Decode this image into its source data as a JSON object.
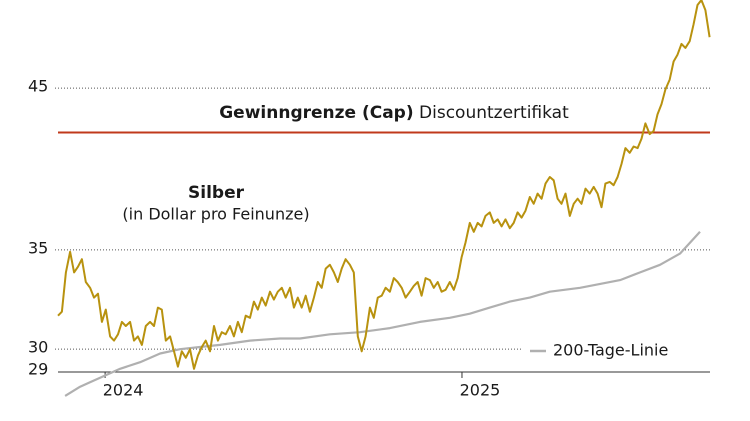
{
  "chart_data": {
    "type": "line",
    "subtitle": "(in Dollar pro Feinunze)",
    "log_scale": true,
    "grid": true,
    "legend": "bottom-right",
    "ylim": [
      29,
      51.6
    ],
    "yticks": [
      29,
      30,
      35,
      45
    ],
    "xlim": [
      2023.868,
      2025.695
    ],
    "xticks": [
      2024,
      2025
    ],
    "cap": {
      "value": 42,
      "label": "Gewinngrenze (Cap)",
      "note": "Discountzertifikat",
      "color": "#c0391b"
    },
    "series": [
      {
        "name": "Silber",
        "color": "#b8920f",
        "x": [
          2023.868,
          2023.879,
          2023.89,
          2023.902,
          2023.913,
          2023.924,
          2023.935,
          2023.946,
          2023.958,
          2023.969,
          2023.98,
          2023.991,
          2024.002,
          2024.014,
          2024.025,
          2024.036,
          2024.047,
          2024.058,
          2024.07,
          2024.081,
          2024.092,
          2024.103,
          2024.114,
          2024.126,
          2024.137,
          2024.148,
          2024.159,
          2024.17,
          2024.182,
          2024.193,
          2024.204,
          2024.215,
          2024.226,
          2024.238,
          2024.249,
          2024.26,
          2024.271,
          2024.282,
          2024.294,
          2024.305,
          2024.316,
          2024.327,
          2024.338,
          2024.35,
          2024.361,
          2024.372,
          2024.383,
          2024.394,
          2024.406,
          2024.417,
          2024.428,
          2024.439,
          2024.45,
          2024.462,
          2024.473,
          2024.484,
          2024.495,
          2024.506,
          2024.518,
          2024.529,
          2024.54,
          2024.551,
          2024.562,
          2024.574,
          2024.585,
          2024.596,
          2024.607,
          2024.618,
          2024.63,
          2024.641,
          2024.652,
          2024.663,
          2024.674,
          2024.686,
          2024.697,
          2024.708,
          2024.719,
          2024.73,
          2024.742,
          2024.753,
          2024.764,
          2024.775,
          2024.786,
          2024.798,
          2024.809,
          2024.82,
          2024.831,
          2024.842,
          2024.854,
          2024.865,
          2024.876,
          2024.887,
          2024.898,
          2024.91,
          2024.921,
          2024.932,
          2024.943,
          2024.954,
          2024.966,
          2024.977,
          2024.988,
          2024.999,
          2025.01,
          2025.022,
          2025.033,
          2025.044,
          2025.055,
          2025.066,
          2025.078,
          2025.089,
          2025.1,
          2025.111,
          2025.122,
          2025.134,
          2025.145,
          2025.156,
          2025.167,
          2025.178,
          2025.19,
          2025.201,
          2025.212,
          2025.223,
          2025.234,
          2025.246,
          2025.257,
          2025.268,
          2025.279,
          2025.29,
          2025.302,
          2025.313,
          2025.324,
          2025.335,
          2025.346,
          2025.358,
          2025.369,
          2025.38,
          2025.391,
          2025.402,
          2025.414,
          2025.425,
          2025.436,
          2025.447,
          2025.458,
          2025.47,
          2025.481,
          2025.492,
          2025.503,
          2025.514,
          2025.526,
          2025.537,
          2025.548,
          2025.559,
          2025.57,
          2025.582,
          2025.593,
          2025.604,
          2025.615,
          2025.626,
          2025.638,
          2025.649,
          2025.66,
          2025.671,
          2025.682,
          2025.694
        ],
        "values": [
          31.6,
          31.8,
          33.8,
          34.9,
          33.8,
          34.1,
          34.5,
          33.3,
          33.0,
          32.5,
          32.7,
          31.3,
          31.9,
          30.6,
          30.4,
          30.7,
          31.3,
          31.1,
          31.3,
          30.4,
          30.6,
          30.2,
          31.1,
          31.3,
          31.1,
          32.0,
          31.9,
          30.4,
          30.6,
          29.9,
          29.2,
          29.9,
          29.6,
          30.0,
          29.1,
          29.7,
          30.1,
          30.4,
          29.9,
          31.1,
          30.4,
          30.8,
          30.7,
          31.1,
          30.6,
          31.3,
          30.8,
          31.6,
          31.5,
          32.3,
          31.9,
          32.5,
          32.1,
          32.8,
          32.4,
          32.8,
          33.0,
          32.5,
          33.0,
          32.0,
          32.5,
          32.0,
          32.6,
          31.8,
          32.5,
          33.3,
          33.0,
          34.0,
          34.2,
          33.8,
          33.3,
          34.0,
          34.5,
          34.2,
          33.8,
          30.6,
          29.9,
          30.6,
          32.0,
          31.5,
          32.5,
          32.6,
          33.0,
          32.8,
          33.5,
          33.3,
          33.0,
          32.5,
          32.8,
          33.1,
          33.3,
          32.6,
          33.5,
          33.4,
          33.0,
          33.3,
          32.8,
          32.9,
          33.3,
          32.9,
          33.5,
          34.6,
          35.4,
          36.5,
          36.0,
          36.5,
          36.3,
          36.9,
          37.1,
          36.5,
          36.7,
          36.3,
          36.7,
          36.2,
          36.5,
          37.1,
          36.8,
          37.2,
          38.0,
          37.6,
          38.2,
          37.9,
          38.8,
          39.2,
          39.0,
          37.9,
          37.6,
          38.2,
          36.9,
          37.6,
          37.9,
          37.6,
          38.5,
          38.2,
          38.6,
          38.2,
          37.4,
          38.8,
          38.9,
          38.7,
          39.2,
          40.0,
          41.0,
          40.7,
          41.1,
          41.0,
          41.6,
          42.6,
          41.9,
          42.1,
          43.2,
          43.9,
          44.9,
          45.6,
          46.9,
          47.4,
          48.2,
          47.9,
          48.4,
          49.7,
          51.2,
          51.6,
          50.8,
          48.7
        ]
      },
      {
        "name": "200-Tage-Linie",
        "color": "#b0b0b0",
        "x": [
          2023.888,
          2023.93,
          2023.986,
          2024.042,
          2024.098,
          2024.154,
          2024.21,
          2024.266,
          2024.322,
          2024.406,
          2024.49,
          2024.546,
          2024.63,
          2024.714,
          2024.798,
          2024.882,
          2024.966,
          2025.022,
          2025.078,
          2025.134,
          2025.19,
          2025.246,
          2025.331,
          2025.387,
          2025.443,
          2025.499,
          2025.555,
          2025.611,
          2025.667
        ],
        "values": [
          27.9,
          28.3,
          28.7,
          29.1,
          29.4,
          29.8,
          30.0,
          30.1,
          30.2,
          30.4,
          30.5,
          30.5,
          30.7,
          30.8,
          31.0,
          31.3,
          31.5,
          31.7,
          32.0,
          32.3,
          32.5,
          32.8,
          33.0,
          33.2,
          33.4,
          33.8,
          34.2,
          34.8,
          36.0
        ]
      }
    ]
  }
}
